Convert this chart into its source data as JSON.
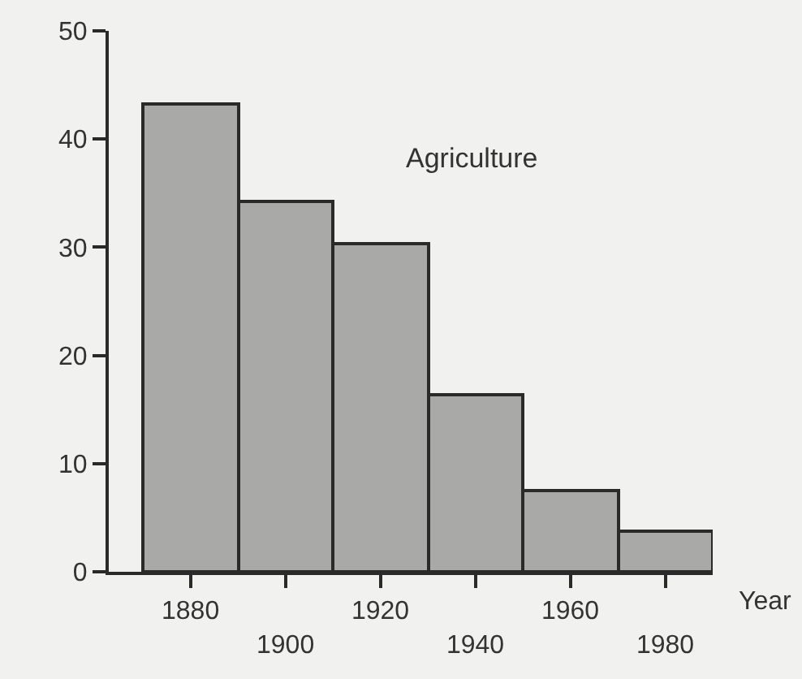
{
  "chart_data": {
    "type": "bar",
    "xlabel": "Year",
    "annotations": [
      "Agriculture"
    ],
    "categories": [
      "1880",
      "1900",
      "1920",
      "1940",
      "1960",
      "1980"
    ],
    "values": [
      43.2,
      34.2,
      30.3,
      16.4,
      7.5,
      3.8
    ],
    "color": "#a9a9a7",
    "ylim": [
      0,
      50
    ],
    "yticks": [
      0,
      10,
      20,
      30,
      40,
      50
    ],
    "grid": false,
    "legend": false
  }
}
